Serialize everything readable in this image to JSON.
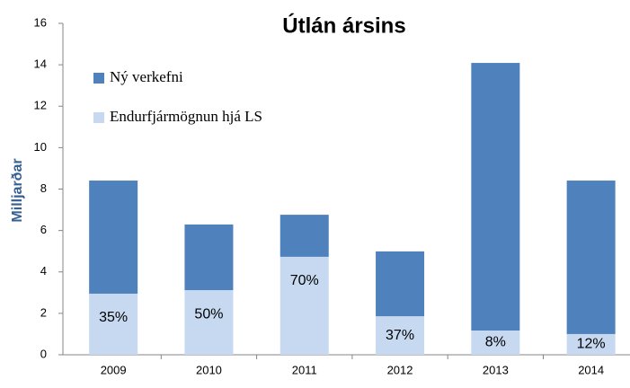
{
  "chart_data": {
    "type": "stacked_bar",
    "title": "Útlán ársins",
    "y_label": "Milljarðar",
    "categories": [
      "2009",
      "2010",
      "2011",
      "2012",
      "2013",
      "2014"
    ],
    "series": [
      {
        "name": "Endurfjármögnun hjá LS",
        "color": "#c6d9f1",
        "values": [
          2.95,
          3.12,
          4.73,
          1.86,
          1.17,
          1.0
        ]
      },
      {
        "name": "Ný verkefni",
        "color": "#4f81bd",
        "values": [
          5.46,
          3.17,
          2.03,
          3.13,
          12.92,
          7.41
        ]
      }
    ],
    "bar_labels": [
      "35%",
      "50%",
      "70%",
      "37%",
      "8%",
      "12%"
    ],
    "ylim": [
      0,
      16
    ],
    "yticks": [
      0,
      2,
      4,
      6,
      8,
      10,
      12,
      14,
      16
    ],
    "grid": false
  }
}
